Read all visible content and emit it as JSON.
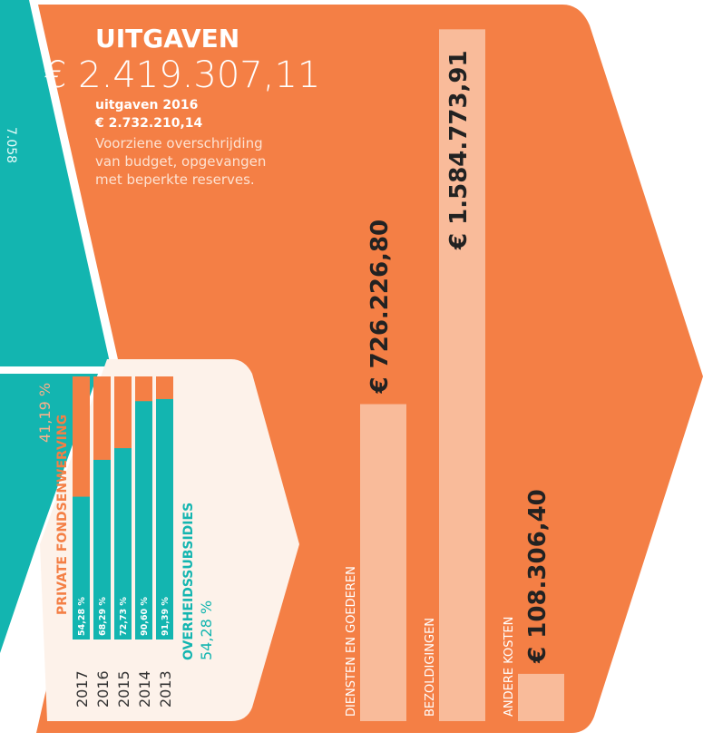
{
  "header": {
    "title": "UITGAVEN",
    "total": "€ 2.419.307,11",
    "prev_label": "uitgaven 2016",
    "prev_total": "€ 2.732.210,14",
    "note": [
      "Voorziene overschrijding",
      "van budget, opgevangen",
      "met beperkte reserves."
    ],
    "side_number": "7.058"
  },
  "chart_data": [
    {
      "type": "stacked-bar",
      "categories": [
        "2017",
        "2016",
        "2015",
        "2014",
        "2013"
      ],
      "series": [
        {
          "name": "OVERHEIDSSUBSIDIES",
          "color": "#13b5b0",
          "values": [
            54.28,
            68.29,
            72.73,
            90.6,
            91.39
          ],
          "value_labels": [
            "54,28 %",
            "68,29 %",
            "72,73 %",
            "90,60 %",
            "91,39 %"
          ],
          "summary": "54,28 %"
        },
        {
          "name": "PRIVATE FONDSENWERVING",
          "color": "#f47f45",
          "summary": "41,19 %"
        }
      ],
      "ylim": [
        0,
        100
      ]
    },
    {
      "type": "bar",
      "categories": [
        "DIENSTEN EN GOEDEREN",
        "BEZOLDIGINGEN",
        "ANDERE KOSTEN"
      ],
      "values": [
        726226.8,
        1584773.91,
        108306.4
      ],
      "value_labels": [
        "€ 726.226,80",
        "€ 1.584.773,91",
        "€ 108.306,40"
      ],
      "color": "#f9bb9a",
      "ylim": [
        0,
        1600000
      ]
    }
  ]
}
